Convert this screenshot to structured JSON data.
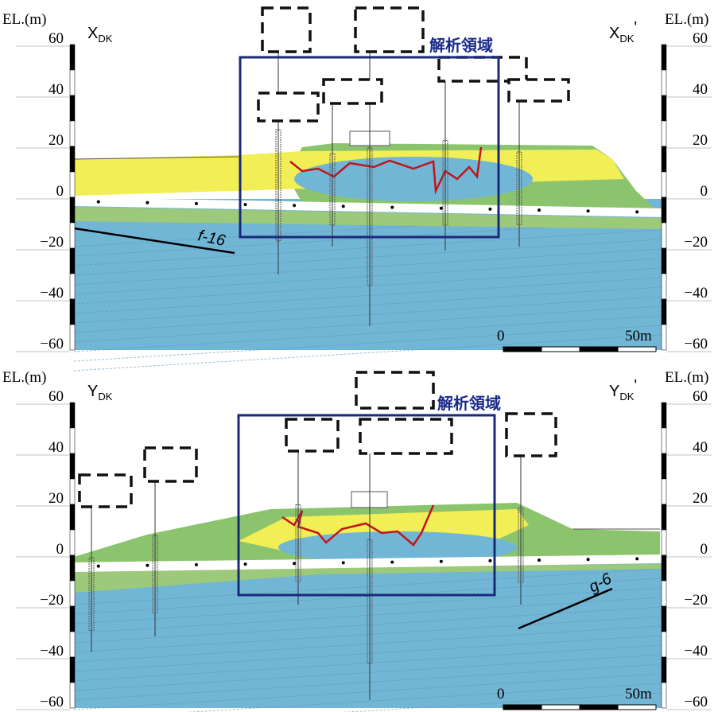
{
  "panels": [
    {
      "left_axis": {
        "title": "EL.(m)",
        "labels": [
          "60",
          "40",
          "20",
          "0",
          "−20",
          "−40",
          "−60"
        ]
      },
      "right_axis": {
        "title": "EL.(m)",
        "labels": [
          "60",
          "40",
          "20",
          "0",
          "−20",
          "−40",
          "−60"
        ]
      },
      "left_label": {
        "main": "X",
        "sub": "DK"
      },
      "right_label": {
        "main": "X",
        "sub": "DK",
        "prime": "'"
      },
      "region_label": "解析領域",
      "fault_label": "f-16",
      "scale": {
        "start": "0",
        "end": "50m"
      }
    },
    {
      "left_axis": {
        "title": "EL.(m)",
        "labels": [
          "60",
          "40",
          "20",
          "0",
          "−20",
          "−40",
          "−60"
        ]
      },
      "right_axis": {
        "title": "EL.(m)",
        "labels": [
          "60",
          "40",
          "20",
          "0",
          "−20",
          "−40",
          "−60"
        ]
      },
      "left_label": {
        "main": "Y",
        "sub": "DK"
      },
      "right_label": {
        "main": "Y",
        "sub": "DK",
        "prime": "'"
      },
      "region_label": "解析領域",
      "fault_label": "g-6",
      "scale": {
        "start": "0",
        "end": "50m"
      }
    }
  ]
}
